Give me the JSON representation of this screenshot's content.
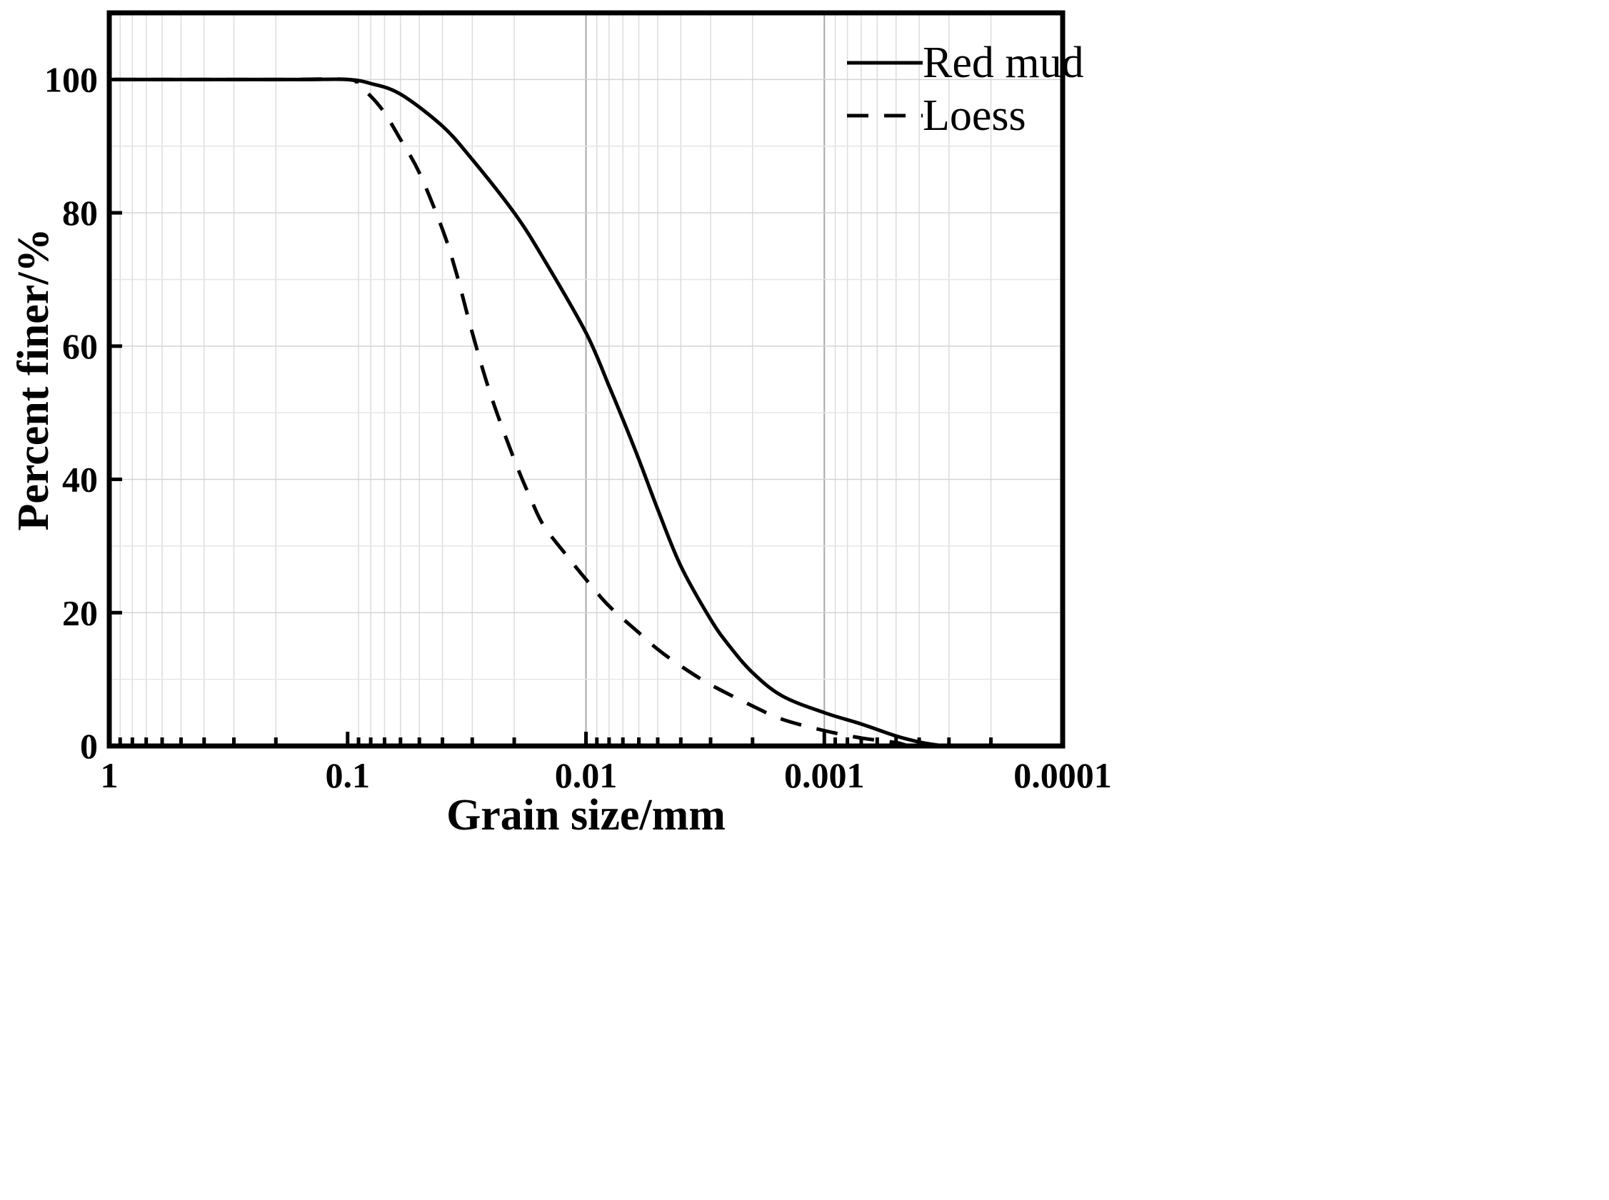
{
  "chart_data": {
    "type": "line",
    "xlabel": "Grain size/mm",
    "ylabel": "Percent finer/%",
    "x_scale": "log",
    "x_reversed": true,
    "xlim": [
      1,
      0.0001
    ],
    "ylim": [
      0,
      110
    ],
    "xticks": [
      {
        "value": 1,
        "label": "1"
      },
      {
        "value": 0.1,
        "label": "0.1"
      },
      {
        "value": 0.01,
        "label": "0.01"
      },
      {
        "value": 0.001,
        "label": "0.001"
      },
      {
        "value": 0.0001,
        "label": "0.0001"
      }
    ],
    "yticks": [
      {
        "value": 0,
        "label": "0"
      },
      {
        "value": 20,
        "label": "20"
      },
      {
        "value": 40,
        "label": "40"
      },
      {
        "value": 60,
        "label": "60"
      },
      {
        "value": 80,
        "label": "80"
      },
      {
        "value": 100,
        "label": "100"
      }
    ],
    "grid": true,
    "legend_position": "top-right",
    "series": [
      {
        "name": "Red mud",
        "style": "solid",
        "color": "#000000",
        "points": [
          [
            0.95,
            100
          ],
          [
            0.3,
            100
          ],
          [
            0.15,
            100
          ],
          [
            0.1,
            100
          ],
          [
            0.08,
            99.4
          ],
          [
            0.06,
            97.8
          ],
          [
            0.04,
            93
          ],
          [
            0.03,
            88
          ],
          [
            0.02,
            80
          ],
          [
            0.015,
            73
          ],
          [
            0.01,
            62
          ],
          [
            0.008,
            54
          ],
          [
            0.007,
            49
          ],
          [
            0.006,
            43
          ],
          [
            0.005,
            35.5
          ],
          [
            0.004,
            27
          ],
          [
            0.003,
            19
          ],
          [
            0.0025,
            15
          ],
          [
            0.002,
            11
          ],
          [
            0.0015,
            7.5
          ],
          [
            0.001,
            5
          ],
          [
            0.0007,
            3.3
          ],
          [
            0.0005,
            1.5
          ],
          [
            0.0004,
            0.6
          ],
          [
            0.00033,
            0.1
          ],
          [
            0.0003,
            0
          ]
        ]
      },
      {
        "name": "Loess",
        "style": "dashed",
        "color": "#000000",
        "points": [
          [
            0.95,
            100
          ],
          [
            0.2,
            100
          ],
          [
            0.1,
            100
          ],
          [
            0.09,
            99
          ],
          [
            0.08,
            97.5
          ],
          [
            0.07,
            95
          ],
          [
            0.06,
            91
          ],
          [
            0.05,
            86
          ],
          [
            0.04,
            77.5
          ],
          [
            0.035,
            71
          ],
          [
            0.03,
            62
          ],
          [
            0.025,
            52.5
          ],
          [
            0.02,
            43
          ],
          [
            0.017,
            37
          ],
          [
            0.015,
            33
          ],
          [
            0.012,
            28.5
          ],
          [
            0.01,
            25
          ],
          [
            0.008,
            21
          ],
          [
            0.006,
            17
          ],
          [
            0.005,
            14.5
          ],
          [
            0.004,
            12
          ],
          [
            0.003,
            9.2
          ],
          [
            0.002,
            6
          ],
          [
            0.0015,
            4
          ],
          [
            0.001,
            2.3
          ],
          [
            0.0007,
            1.2
          ],
          [
            0.0005,
            0.5
          ],
          [
            0.00045,
            0.1
          ],
          [
            0.0004,
            0
          ]
        ]
      }
    ]
  }
}
